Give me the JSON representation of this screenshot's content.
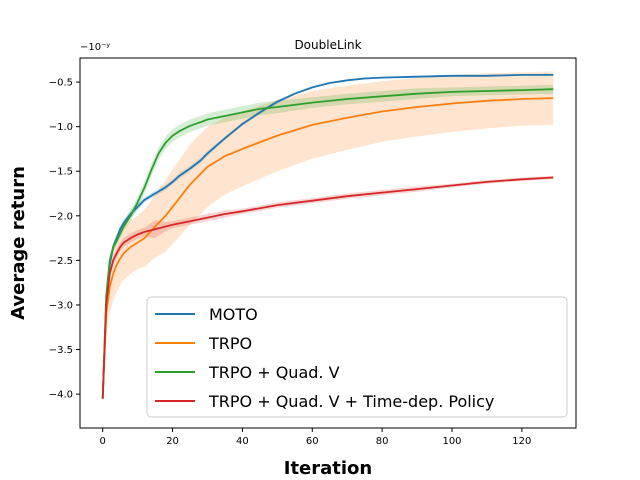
{
  "chart_data": {
    "type": "line",
    "title": "DoubleLink",
    "xlabel": "Iteration",
    "ylabel": "Average return",
    "offset_label": "−10⁻ʸ",
    "xlim": [
      -6.5,
      135.5
    ],
    "ylim": [
      -4.38,
      -0.23
    ],
    "x_ticks": [
      0,
      20,
      40,
      60,
      80,
      100,
      120
    ],
    "x_tick_labels": [
      "0",
      "20",
      "40",
      "60",
      "80",
      "100",
      "120"
    ],
    "y_ticks": [
      -4.0,
      -3.5,
      -3.0,
      -2.5,
      -2.0,
      -1.5,
      -1.0,
      -0.5
    ],
    "y_tick_labels": [
      "−4.0",
      "−3.5",
      "−3.0",
      "−2.5",
      "−2.0",
      "−1.5",
      "−1.0",
      "−0.5"
    ],
    "grid": false,
    "legend_position": "lower-right",
    "series": [
      {
        "name": "MOTO",
        "color": "#1f77b4",
        "x": [
          0,
          1,
          2,
          3,
          4,
          5,
          6,
          8,
          10,
          12,
          15,
          18,
          20,
          22,
          25,
          28,
          30,
          35,
          40,
          45,
          50,
          55,
          60,
          65,
          70,
          75,
          80,
          90,
          100,
          110,
          120,
          129
        ],
        "y": [
          -4.05,
          -3.0,
          -2.55,
          -2.35,
          -2.25,
          -2.15,
          -2.08,
          -1.98,
          -1.9,
          -1.82,
          -1.75,
          -1.68,
          -1.62,
          -1.55,
          -1.47,
          -1.38,
          -1.3,
          -1.13,
          -0.97,
          -0.84,
          -0.72,
          -0.63,
          -0.56,
          -0.51,
          -0.48,
          -0.46,
          -0.45,
          -0.44,
          -0.43,
          -0.43,
          -0.42,
          -0.42
        ],
        "band": [
          0.03,
          0.08,
          0.06,
          0.05,
          0.05,
          0.04,
          0.04,
          0.04,
          0.04,
          0.03,
          0.03,
          0.03,
          0.03,
          0.03,
          0.03,
          0.03,
          0.03,
          0.02,
          0.02,
          0.02,
          0.02,
          0.01,
          0.01,
          0.01,
          0.01,
          0.01,
          0.01,
          0.01,
          0.01,
          0.01,
          0.01,
          0.01
        ]
      },
      {
        "name": "TRPO",
        "color": "#ff7f0e",
        "x": [
          0,
          1,
          2,
          3,
          4,
          5,
          6,
          8,
          10,
          12,
          15,
          18,
          20,
          25,
          30,
          35,
          40,
          50,
          60,
          70,
          80,
          90,
          100,
          110,
          120,
          129
        ],
        "y": [
          -4.05,
          -3.1,
          -2.8,
          -2.65,
          -2.55,
          -2.48,
          -2.42,
          -2.35,
          -2.3,
          -2.25,
          -2.12,
          -2.0,
          -1.9,
          -1.65,
          -1.45,
          -1.33,
          -1.25,
          -1.1,
          -0.98,
          -0.9,
          -0.83,
          -0.78,
          -0.74,
          -0.71,
          -0.69,
          -0.68
        ],
        "band": [
          0.03,
          0.25,
          0.3,
          0.3,
          0.3,
          0.3,
          0.3,
          0.3,
          0.3,
          0.32,
          0.35,
          0.4,
          0.42,
          0.45,
          0.45,
          0.43,
          0.42,
          0.4,
          0.38,
          0.36,
          0.34,
          0.33,
          0.32,
          0.31,
          0.3,
          0.3
        ]
      },
      {
        "name": "TRPO + Quad. V",
        "color": "#2ca02c",
        "x": [
          0,
          1,
          2,
          3,
          4,
          5,
          6,
          8,
          10,
          12,
          14,
          16,
          18,
          20,
          22,
          25,
          28,
          30,
          35,
          40,
          45,
          50,
          60,
          70,
          80,
          90,
          100,
          110,
          120,
          129
        ],
        "y": [
          -4.05,
          -2.9,
          -2.5,
          -2.35,
          -2.28,
          -2.2,
          -2.12,
          -2.0,
          -1.85,
          -1.68,
          -1.48,
          -1.3,
          -1.18,
          -1.1,
          -1.05,
          -0.99,
          -0.95,
          -0.92,
          -0.88,
          -0.84,
          -0.8,
          -0.78,
          -0.73,
          -0.69,
          -0.66,
          -0.63,
          -0.61,
          -0.6,
          -0.59,
          -0.58
        ],
        "band": [
          0.03,
          0.05,
          0.05,
          0.05,
          0.05,
          0.05,
          0.05,
          0.06,
          0.06,
          0.07,
          0.07,
          0.07,
          0.07,
          0.07,
          0.07,
          0.07,
          0.07,
          0.07,
          0.07,
          0.07,
          0.07,
          0.07,
          0.06,
          0.06,
          0.06,
          0.06,
          0.05,
          0.05,
          0.05,
          0.05
        ]
      },
      {
        "name": "TRPO + Quad. V + Time-dep. Policy",
        "color": "#d62728",
        "x": [
          0,
          1,
          2,
          3,
          4,
          5,
          6,
          8,
          10,
          12,
          15,
          18,
          20,
          25,
          30,
          35,
          40,
          50,
          60,
          70,
          80,
          90,
          100,
          110,
          120,
          129
        ],
        "y": [
          -4.05,
          -3.0,
          -2.65,
          -2.5,
          -2.42,
          -2.35,
          -2.3,
          -2.25,
          -2.21,
          -2.18,
          -2.15,
          -2.12,
          -2.1,
          -2.06,
          -2.02,
          -1.98,
          -1.95,
          -1.88,
          -1.83,
          -1.78,
          -1.74,
          -1.7,
          -1.66,
          -1.62,
          -1.59,
          -1.57
        ],
        "band": [
          0.03,
          0.06,
          0.05,
          0.05,
          0.05,
          0.05,
          0.05,
          0.05,
          0.05,
          0.05,
          0.1,
          0.05,
          0.04,
          0.04,
          0.04,
          0.04,
          0.03,
          0.03,
          0.03,
          0.03,
          0.03,
          0.03,
          0.02,
          0.02,
          0.02,
          0.02
        ]
      }
    ]
  }
}
